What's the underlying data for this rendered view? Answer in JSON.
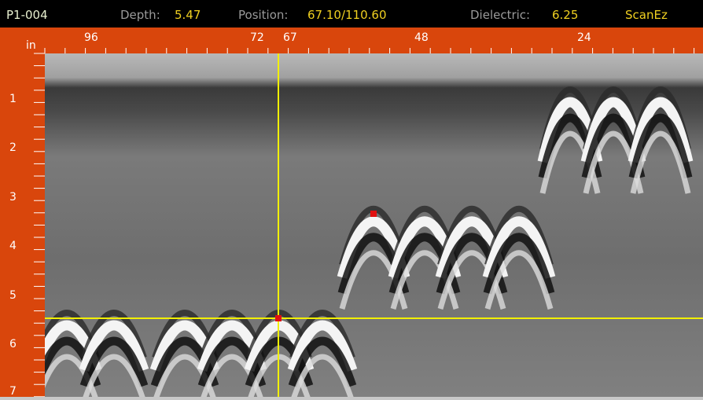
{
  "header": {
    "file": "P1-004",
    "depth_label": "Depth:",
    "depth_value": "5.47",
    "position_label": "Position:",
    "position_value": "67.10/110.60",
    "dielectric_label": "Dielectric:",
    "dielectric_value": "6.25",
    "mode": "ScanEz"
  },
  "ruler": {
    "unit": "in",
    "top_labels": [
      "96",
      "72",
      "67",
      "48",
      "24"
    ],
    "left_labels": [
      "1",
      "2",
      "3",
      "4",
      "5",
      "6",
      "7"
    ]
  }
}
